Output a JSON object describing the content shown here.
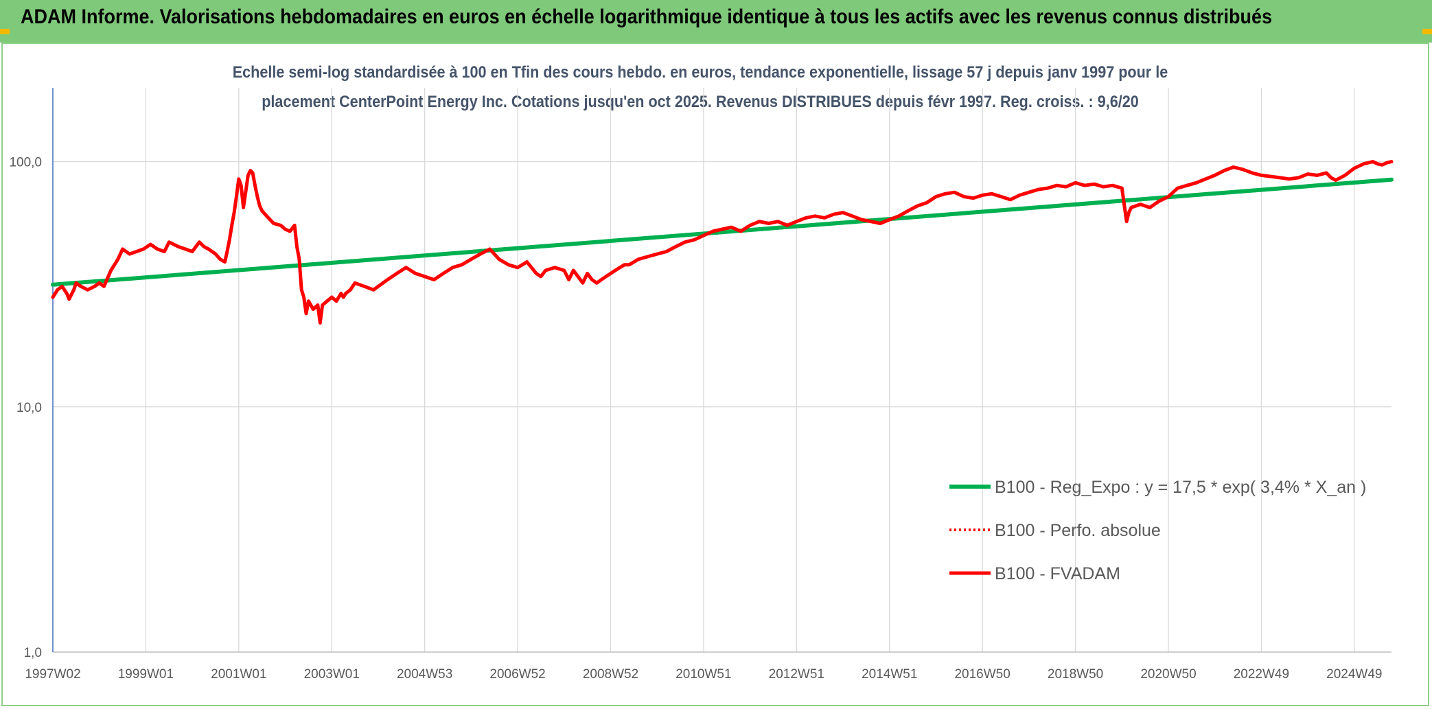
{
  "header": {
    "title": "ADAM Informe. Valorisations hebdomadaires en euros en échelle logarithmique identique à tous les actifs avec les revenus connus distribués"
  },
  "colors": {
    "banner": "#7fc97a",
    "regression": "#00b050",
    "fvadam": "#ff0000",
    "perfo": "#ff0000",
    "grid": "#d9d9d9",
    "axis": "#4472c4"
  },
  "chart_data": {
    "type": "line",
    "title_line1": "Echelle semi-log standardisée à 100 en Tfin des cours hebdo. en euros, tendance exponentielle, lissage 57 j depuis janv 1997 pour le",
    "title_line2": "placement CenterPoint Energy Inc. Cotations jusqu'en oct 2025. Revenus DISTRIBUES depuis févr 1997. Reg. croiss. : 9,6/20",
    "yscale": "log",
    "ylim": [
      1,
      200
    ],
    "xlim": [
      1997.0,
      2025.8
    ],
    "yticks": [
      {
        "value": 1,
        "label": "1,0"
      },
      {
        "value": 10,
        "label": "10,0"
      },
      {
        "value": 100,
        "label": "100,0"
      }
    ],
    "xticks": [
      {
        "value": 1997.0,
        "label": "1997W02"
      },
      {
        "value": 1999.0,
        "label": "1999W01"
      },
      {
        "value": 2001.0,
        "label": "2001W01"
      },
      {
        "value": 2003.0,
        "label": "2003W01"
      },
      {
        "value": 2005.0,
        "label": "2004W53"
      },
      {
        "value": 2007.0,
        "label": "2006W52"
      },
      {
        "value": 2009.0,
        "label": "2008W52"
      },
      {
        "value": 2011.0,
        "label": "2010W51"
      },
      {
        "value": 2013.0,
        "label": "2012W51"
      },
      {
        "value": 2015.0,
        "label": "2014W51"
      },
      {
        "value": 2017.0,
        "label": "2016W50"
      },
      {
        "value": 2019.0,
        "label": "2018W50"
      },
      {
        "value": 2021.0,
        "label": "2020W50"
      },
      {
        "value": 2023.0,
        "label": "2022W49"
      },
      {
        "value": 2025.0,
        "label": "2024W49"
      }
    ],
    "legend_position": "bottom-right",
    "series": [
      {
        "name": "B100 - Reg_Expo : y = 17,5 * exp( 3,4% *  X_an )",
        "style": "solid-green",
        "x": [
          1997.0,
          2025.8
        ],
        "y": [
          31.5,
          84.5
        ]
      },
      {
        "name": "B100 - Perfo. absolue",
        "style": "dotted-red",
        "x": [],
        "y": []
      },
      {
        "name": "B100 - FVADAM",
        "style": "solid-red",
        "x": [
          1997.0,
          1997.1,
          1997.2,
          1997.3,
          1997.35,
          1997.45,
          1997.5,
          1997.6,
          1997.75,
          1997.9,
          1998.0,
          1998.1,
          1998.25,
          1998.4,
          1998.5,
          1998.65,
          1998.8,
          1998.95,
          1999.1,
          1999.25,
          1999.4,
          1999.5,
          1999.6,
          1999.7,
          1999.85,
          2000.0,
          2000.15,
          2000.25,
          2000.35,
          2000.5,
          2000.6,
          2000.7,
          2000.75,
          2000.8,
          2000.85,
          2000.9,
          2000.95,
          2001.0,
          2001.05,
          2001.1,
          2001.2,
          2001.25,
          2001.3,
          2001.35,
          2001.4,
          2001.45,
          2001.5,
          2001.6,
          2001.75,
          2001.9,
          2002.0,
          2002.1,
          2002.2,
          2002.25,
          2002.3,
          2002.35,
          2002.4,
          2002.45,
          2002.5,
          2002.6,
          2002.7,
          2002.75,
          2002.8,
          2002.9,
          2003.0,
          2003.1,
          2003.2,
          2003.25,
          2003.3,
          2003.4,
          2003.5,
          2003.7,
          2003.9,
          2004.0,
          2004.2,
          2004.4,
          2004.6,
          2004.8,
          2005.0,
          2005.2,
          2005.4,
          2005.6,
          2005.8,
          2006.0,
          2006.2,
          2006.4,
          2006.6,
          2006.8,
          2007.0,
          2007.2,
          2007.4,
          2007.5,
          2007.6,
          2007.8,
          2008.0,
          2008.1,
          2008.2,
          2008.4,
          2008.5,
          2008.6,
          2008.7,
          2008.8,
          2008.9,
          2009.0,
          2009.1,
          2009.2,
          2009.3,
          2009.4,
          2009.6,
          2009.8,
          2010.0,
          2010.2,
          2010.4,
          2010.6,
          2010.8,
          2011.0,
          2011.2,
          2011.4,
          2011.6,
          2011.8,
          2012.0,
          2012.2,
          2012.4,
          2012.6,
          2012.8,
          2013.0,
          2013.2,
          2013.4,
          2013.6,
          2013.8,
          2014.0,
          2014.2,
          2014.4,
          2014.6,
          2014.8,
          2015.0,
          2015.2,
          2015.4,
          2015.6,
          2015.8,
          2016.0,
          2016.2,
          2016.4,
          2016.6,
          2016.8,
          2017.0,
          2017.2,
          2017.4,
          2017.6,
          2017.8,
          2018.0,
          2018.2,
          2018.4,
          2018.6,
          2018.8,
          2019.0,
          2019.2,
          2019.4,
          2019.6,
          2019.8,
          2020.0,
          2020.1,
          2020.15,
          2020.2,
          2020.3,
          2020.4,
          2020.6,
          2020.8,
          2021.0,
          2021.1,
          2021.2,
          2021.4,
          2021.6,
          2021.8,
          2022.0,
          2022.2,
          2022.4,
          2022.6,
          2022.8,
          2023.0,
          2023.2,
          2023.4,
          2023.6,
          2023.8,
          2024.0,
          2024.2,
          2024.4,
          2024.5,
          2024.6,
          2024.8,
          2025.0,
          2025.2,
          2025.4,
          2025.5,
          2025.6,
          2025.7,
          2025.8
        ],
        "y": [
          28,
          30,
          31,
          29,
          27.5,
          30,
          32,
          31,
          30,
          31,
          32,
          31,
          36,
          40,
          44,
          42,
          43,
          44,
          46,
          44,
          43,
          47,
          46,
          45,
          44,
          43,
          47,
          45,
          44,
          42,
          40,
          39,
          43,
          48,
          55,
          62,
          72,
          85,
          80,
          65,
          88,
          92,
          90,
          80,
          72,
          66,
          63,
          60,
          56,
          55,
          53,
          52,
          55,
          45,
          40,
          30,
          28,
          24,
          27,
          25,
          26,
          22,
          26,
          27,
          28,
          27,
          29,
          28,
          29,
          30,
          32,
          31,
          30,
          31,
          33,
          35,
          37,
          35,
          34,
          33,
          35,
          37,
          38,
          40,
          42,
          44,
          40,
          38,
          37,
          39,
          35,
          34,
          36,
          37,
          36,
          33,
          36,
          32,
          35,
          33,
          32,
          33,
          34,
          35,
          36,
          37,
          38,
          38,
          40,
          41,
          42,
          43,
          45,
          47,
          48,
          50,
          52,
          53,
          54,
          52,
          55,
          57,
          56,
          57,
          55,
          57,
          59,
          60,
          59,
          61,
          62,
          60,
          58,
          57,
          56,
          58,
          60,
          63,
          66,
          68,
          72,
          74,
          75,
          72,
          71,
          73,
          74,
          72,
          70,
          73,
          75,
          77,
          78,
          80,
          79,
          82,
          80,
          81,
          79,
          80,
          78,
          57,
          62,
          65,
          66,
          67,
          65,
          69,
          72,
          75,
          78,
          80,
          82,
          85,
          88,
          92,
          95,
          93,
          90,
          88,
          87,
          86,
          85,
          86,
          89,
          88,
          90,
          86,
          84,
          88,
          94,
          98,
          100,
          98,
          97,
          99,
          100
        ]
      }
    ]
  }
}
